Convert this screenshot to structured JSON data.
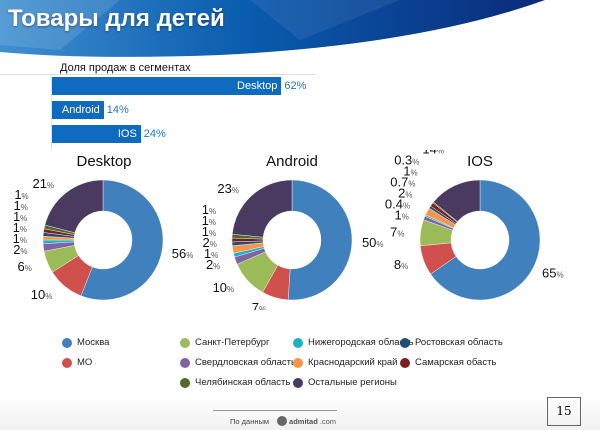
{
  "header": {
    "title": "Товары для детей"
  },
  "colors": {
    "Москва": "#4080bd",
    "МО": "#cf504c",
    "Санкт-Петербург": "#9bbb59",
    "Свердловская область": "#8064a2",
    "Нижегородская область": "#1fb0c8",
    "Краснодарский край": "#f79646",
    "Ростовская область": "#1f4e79",
    "Самарская обасть": "#7b2020",
    "Челябинская область": "#4f6b28",
    "Остальные регионы": "#4a3a60"
  },
  "chart_data": [
    {
      "type": "bar",
      "title": "Доля продаж в сегментах",
      "categories": [
        "Desktop",
        "Android",
        "IOS"
      ],
      "values": [
        62,
        14,
        24
      ],
      "value_labels": [
        "62%",
        "14%",
        "24%"
      ],
      "unit": "%"
    },
    {
      "type": "pie",
      "title": "Desktop",
      "categories": [
        "Москва",
        "МО",
        "Санкт-Петербург",
        "Свердловская область",
        "Нижегородская область",
        "Краснодарский край",
        "Ростовская область",
        "Самарская обасть",
        "Челябинская область",
        "Остальные регионы"
      ],
      "values": [
        56,
        10,
        6,
        2,
        1,
        1,
        1,
        1,
        1,
        21
      ]
    },
    {
      "type": "pie",
      "title": "Android",
      "categories": [
        "Москва",
        "МО",
        "Санкт-Петербург",
        "Свердловская область",
        "Нижегородская область",
        "Краснодарский край",
        "Ростовская область",
        "Самарская обасть",
        "Челябинская область",
        "Остальные регионы"
      ],
      "values": [
        50,
        7,
        10,
        2,
        1,
        2,
        1,
        1,
        1,
        23
      ]
    },
    {
      "type": "pie",
      "title": "IOS",
      "categories": [
        "Москва",
        "МО",
        "Санкт-Петербург",
        "Свердловская область",
        "Нижегородская область",
        "Краснодарский край",
        "Ростовская область",
        "Самарская обасть",
        "Челябинская область",
        "Остальные регионы"
      ],
      "values": [
        65,
        8,
        7,
        1,
        0.4,
        2,
        0.7,
        1,
        0.3,
        14
      ]
    }
  ],
  "legend": [
    "Москва",
    "МО",
    "Санкт-Петербург",
    "Свердловская область",
    "Челябинская область",
    "Нижегородская область",
    "Краснодарский край",
    "Остальные регионы",
    "Ростовская область",
    "Самарская обасть"
  ],
  "footer": {
    "source_label": "По данным",
    "logo_text": "admitad",
    "logo_suffix": ".com",
    "page_number": "15"
  }
}
